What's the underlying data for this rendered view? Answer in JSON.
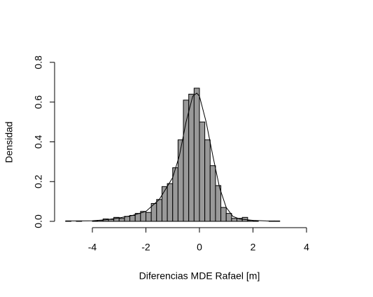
{
  "chart_data": {
    "type": "histogram",
    "xlabel": "Diferencias MDE Rafael [m]",
    "ylabel": "Densidad",
    "bins": [
      -5.0,
      -4.8,
      -4.6,
      -4.4,
      -4.2,
      -4.0,
      -3.8,
      -3.6,
      -3.4,
      -3.2,
      -3.0,
      -2.8,
      -2.6,
      -2.4,
      -2.2,
      -2.0,
      -1.8,
      -1.6,
      -1.4,
      -1.2,
      -1.0,
      -0.8,
      -0.6,
      -0.4,
      -0.2,
      0.0,
      0.2,
      0.4,
      0.6,
      0.8,
      1.0,
      1.2,
      1.4,
      1.6,
      1.8,
      2.0,
      2.2,
      2.4,
      2.6,
      2.8,
      3.0
    ],
    "values": [
      0.002,
      0,
      0.002,
      0,
      0,
      0.002,
      0.005,
      0.012,
      0.01,
      0.02,
      0.015,
      0.025,
      0.03,
      0.04,
      0.05,
      0.045,
      0.09,
      0.11,
      0.175,
      0.19,
      0.27,
      0.41,
      0.61,
      0.64,
      0.67,
      0.5,
      0.41,
      0.28,
      0.18,
      0.07,
      0.04,
      0.015,
      0.015,
      0.02,
      0.005,
      0.002,
      0,
      0,
      0.002,
      0.002
    ],
    "color": "#999999",
    "density": {
      "x": [
        -5,
        -4.5,
        -4,
        -3.5,
        -3,
        -2.5,
        -2,
        -1.5,
        -1,
        -0.75,
        -0.5,
        -0.25,
        -0.1,
        0,
        0.25,
        0.5,
        0.75,
        1,
        1.25,
        1.5,
        2,
        2.5,
        3
      ],
      "values": [
        0.002,
        0.002,
        0.003,
        0.008,
        0.017,
        0.03,
        0.05,
        0.11,
        0.22,
        0.33,
        0.5,
        0.63,
        0.645,
        0.63,
        0.5,
        0.33,
        0.17,
        0.07,
        0.025,
        0.012,
        0.005,
        0.002,
        0.001
      ],
      "color": "#000000"
    },
    "xlim": [
      -4,
      4
    ],
    "xticks": [
      -4,
      -2,
      0,
      2,
      4
    ],
    "ylim": [
      0,
      0.8
    ],
    "yticks": [
      {
        "value": 0,
        "label": "0.0"
      },
      {
        "value": 0.2,
        "label": "0.2"
      },
      {
        "value": 0.4,
        "label": "0.4"
      },
      {
        "value": 0.6,
        "label": "0.6"
      },
      {
        "value": 0.8,
        "label": "0.8"
      }
    ]
  }
}
